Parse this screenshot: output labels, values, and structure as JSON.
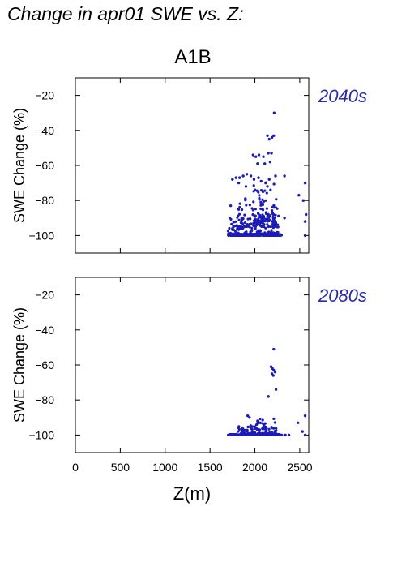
{
  "figure": {
    "title": "Change in apr01 SWE vs. Z:",
    "scenario": "A1B",
    "xlabel": "Z(m)"
  },
  "colors": {
    "points": "#1c1cb4",
    "period_label": "#2a2aaa",
    "axes": "#000000"
  },
  "chart_data": [
    {
      "type": "scatter",
      "period": "2040s",
      "ylabel": "SWE Change (%)",
      "xlabel": "",
      "xlim": [
        0,
        2600
      ],
      "ylim": [
        -110,
        -10
      ],
      "xticks": [
        0,
        500,
        1000,
        1500,
        2000,
        2500
      ],
      "yticks": [
        -20,
        -40,
        -60,
        -80,
        -100
      ],
      "grid": false,
      "clusters": [
        {
          "x_range": [
            1700,
            2300
          ],
          "y_range": [
            -100,
            -99
          ],
          "count": 260
        },
        {
          "x_range": [
            1700,
            2270
          ],
          "y_range": [
            -100,
            -88
          ],
          "count": 170
        },
        {
          "x_range": [
            1800,
            2250
          ],
          "y_range": [
            -95,
            -78
          ],
          "count": 80
        },
        {
          "x_range": [
            1980,
            2220
          ],
          "y_range": [
            -92,
            -68
          ],
          "count": 45
        }
      ],
      "points": [
        [
          2215,
          -30
        ],
        [
          2140,
          -43
        ],
        [
          2160,
          -45
        ],
        [
          2190,
          -44
        ],
        [
          2210,
          -43
        ],
        [
          1980,
          -54
        ],
        [
          2010,
          -55
        ],
        [
          2045,
          -54
        ],
        [
          2095,
          -55
        ],
        [
          2150,
          -53
        ],
        [
          2185,
          -53
        ],
        [
          2030,
          -59
        ],
        [
          2110,
          -59
        ],
        [
          2170,
          -58
        ],
        [
          1750,
          -68
        ],
        [
          1790,
          -67
        ],
        [
          1830,
          -67
        ],
        [
          1870,
          -66
        ],
        [
          1910,
          -65
        ],
        [
          1955,
          -66
        ],
        [
          1990,
          -68
        ],
        [
          2040,
          -67
        ],
        [
          2070,
          -69
        ],
        [
          2120,
          -70
        ],
        [
          2160,
          -68
        ],
        [
          2230,
          -66
        ],
        [
          1820,
          -70
        ],
        [
          1900,
          -72
        ],
        [
          2000,
          -74
        ],
        [
          2090,
          -75
        ],
        [
          2140,
          -72
        ],
        [
          2330,
          -66
        ],
        [
          2560,
          -70
        ],
        [
          2330,
          -90
        ],
        [
          2490,
          -77
        ],
        [
          2540,
          -80
        ],
        [
          2570,
          -88
        ],
        [
          2560,
          -92
        ],
        [
          2560,
          -100
        ],
        [
          1730,
          -83
        ]
      ]
    },
    {
      "type": "scatter",
      "period": "2080s",
      "ylabel": "SWE Change (%)",
      "xlabel": "Z(m)",
      "xlim": [
        0,
        2600
      ],
      "ylim": [
        -110,
        -10
      ],
      "xticks": [
        0,
        500,
        1000,
        1500,
        2000,
        2500
      ],
      "yticks": [
        -20,
        -40,
        -60,
        -80,
        -100
      ],
      "grid": false,
      "clusters": [
        {
          "x_range": [
            1700,
            2280
          ],
          "y_range": [
            -100,
            -99.5
          ],
          "count": 260
        },
        {
          "x_range": [
            1800,
            2250
          ],
          "y_range": [
            -99,
            -95
          ],
          "count": 60
        },
        {
          "x_range": [
            1950,
            2230
          ],
          "y_range": [
            -97,
            -90
          ],
          "count": 25
        }
      ],
      "points": [
        [
          2210,
          -51
        ],
        [
          2180,
          -61
        ],
        [
          2195,
          -62
        ],
        [
          2210,
          -63
        ],
        [
          2225,
          -64
        ],
        [
          2190,
          -65
        ],
        [
          2205,
          -66
        ],
        [
          2150,
          -78
        ],
        [
          2235,
          -74
        ],
        [
          1920,
          -89
        ],
        [
          1940,
          -90
        ],
        [
          2030,
          -92
        ],
        [
          2060,
          -93
        ],
        [
          2100,
          -94
        ],
        [
          2300,
          -100
        ],
        [
          2340,
          -100
        ],
        [
          2380,
          -100
        ],
        [
          2480,
          -93
        ],
        [
          2560,
          -89
        ],
        [
          2530,
          -98
        ],
        [
          2560,
          -100
        ]
      ]
    }
  ]
}
